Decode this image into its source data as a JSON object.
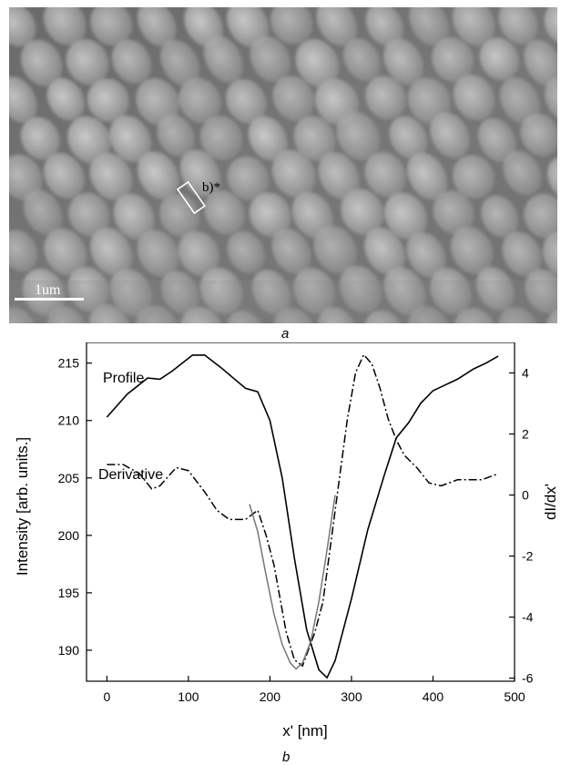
{
  "panel_a": {
    "caption": "a",
    "region_label": "b)*",
    "scale_bar_label": "1um"
  },
  "panel_b": {
    "caption": "b"
  },
  "chart_data": {
    "type": "line",
    "xlabel": "x' [nm]",
    "ylabel_left": "Intensity [arb. units.]",
    "ylabel_right": "dI/dx'",
    "xlim": [
      -25,
      500
    ],
    "ylim_left": [
      187.3,
      216.8
    ],
    "ylim_right": [
      -6.1,
      5.0
    ],
    "x_ticks": [
      0,
      100,
      200,
      300,
      400,
      500
    ],
    "y_ticks_left": [
      190,
      195,
      200,
      205,
      210,
      215
    ],
    "y_ticks_right": [
      -6,
      -4,
      -2,
      0,
      2,
      4
    ],
    "annotations": [
      "Profile",
      "Derivative"
    ],
    "series": [
      {
        "name": "Profile",
        "axis": "left",
        "style": "solid",
        "color": "#000000",
        "points": [
          [
            0,
            210.3
          ],
          [
            25,
            212.3
          ],
          [
            50,
            213.7
          ],
          [
            65,
            213.6
          ],
          [
            80,
            214.3
          ],
          [
            105,
            215.7
          ],
          [
            120,
            215.7
          ],
          [
            140,
            214.6
          ],
          [
            170,
            212.8
          ],
          [
            185,
            212.5
          ],
          [
            200,
            210.0
          ],
          [
            215,
            205.0
          ],
          [
            230,
            198.0
          ],
          [
            245,
            191.8
          ],
          [
            260,
            188.3
          ],
          [
            270,
            187.6
          ],
          [
            280,
            189.1
          ],
          [
            300,
            194.5
          ],
          [
            320,
            200.5
          ],
          [
            340,
            205.2
          ],
          [
            355,
            208.5
          ],
          [
            370,
            209.8
          ],
          [
            385,
            211.5
          ],
          [
            400,
            212.6
          ],
          [
            415,
            213.1
          ],
          [
            430,
            213.6
          ],
          [
            450,
            214.5
          ],
          [
            465,
            215.0
          ],
          [
            480,
            215.6
          ]
        ]
      },
      {
        "name": "Derivative",
        "axis": "right",
        "style": "dash-dot",
        "color": "#000000",
        "points": [
          [
            0,
            1.0
          ],
          [
            20,
            1.0
          ],
          [
            40,
            0.7
          ],
          [
            55,
            0.2
          ],
          [
            65,
            0.3
          ],
          [
            85,
            0.9
          ],
          [
            100,
            0.8
          ],
          [
            120,
            0.1
          ],
          [
            135,
            -0.5
          ],
          [
            150,
            -0.8
          ],
          [
            170,
            -0.8
          ],
          [
            185,
            -0.5
          ],
          [
            195,
            -1.3
          ],
          [
            205,
            -2.3
          ],
          [
            220,
            -4.5
          ],
          [
            230,
            -5.4
          ],
          [
            240,
            -5.6
          ],
          [
            255,
            -4.5
          ],
          [
            265,
            -3.5
          ],
          [
            275,
            -1.5
          ],
          [
            285,
            0.5
          ],
          [
            295,
            2.5
          ],
          [
            305,
            4.0
          ],
          [
            315,
            4.6
          ],
          [
            325,
            4.3
          ],
          [
            335,
            3.5
          ],
          [
            345,
            2.5
          ],
          [
            355,
            1.8
          ],
          [
            365,
            1.3
          ],
          [
            380,
            0.9
          ],
          [
            395,
            0.4
          ],
          [
            410,
            0.3
          ],
          [
            430,
            0.5
          ],
          [
            460,
            0.5
          ],
          [
            480,
            0.7
          ]
        ]
      },
      {
        "name": "fit",
        "axis": "right",
        "style": "solid",
        "color": "#777777",
        "points": [
          [
            175,
            -0.3
          ],
          [
            185,
            -1.2
          ],
          [
            195,
            -2.6
          ],
          [
            205,
            -3.9
          ],
          [
            215,
            -4.9
          ],
          [
            225,
            -5.5
          ],
          [
            232,
            -5.7
          ],
          [
            240,
            -5.5
          ],
          [
            250,
            -4.8
          ],
          [
            260,
            -3.5
          ],
          [
            270,
            -1.8
          ],
          [
            280,
            0.0
          ]
        ]
      }
    ]
  }
}
